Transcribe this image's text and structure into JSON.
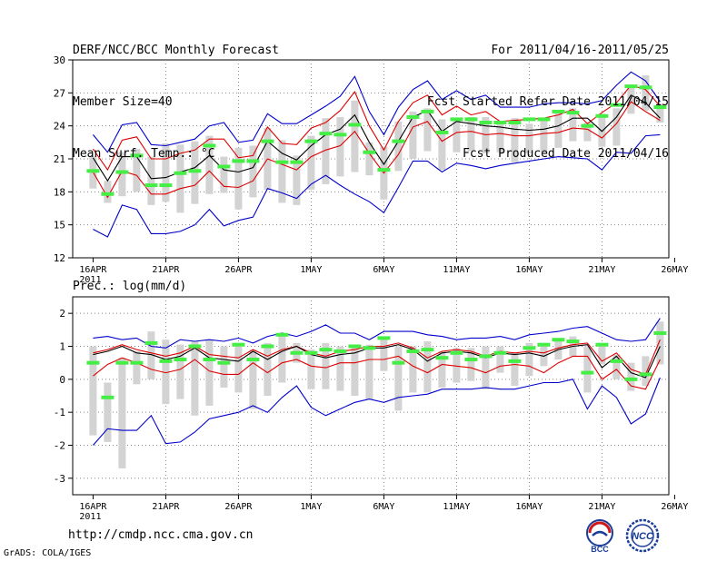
{
  "header": {
    "title": "DERF/NCC/BCC Monthly Forecast",
    "member_size": "Member Size=40",
    "variable": "Mean Surf. Temp.: °C",
    "forecast_period": "For 2011/04/16-2011/05/25",
    "start_date": "Fcst Started Refer Date 2011/04/15",
    "produced_date": "Fcst Produced Date 2011/04/16"
  },
  "footer": {
    "url": "http://cmdp.ncc.cma.gov.cn",
    "grads": "GrADS: COLA/IGES",
    "logo_bcc": "BCC",
    "logo_ncc": "NCC"
  },
  "colors": {
    "max_min": "#0000cc",
    "spread": "#dd0000",
    "mean": "#000000",
    "member": "#44ee44",
    "bar": "#d3d3d3",
    "grid": "#888888"
  },
  "chart_data": [
    {
      "type": "line",
      "title": "Mean Surf. Temp.: °C",
      "x_ticks": [
        "16APR",
        "21APR",
        "26APR",
        "1MAY",
        "6MAY",
        "11MAY",
        "16MAY",
        "21MAY",
        "26MAY"
      ],
      "x_tick_days": [
        0,
        5,
        10,
        15,
        20,
        25,
        30,
        35,
        40
      ],
      "x_sublabel": "2011",
      "ylim": [
        12,
        30
      ],
      "y_ticks": [
        12,
        15,
        18,
        21,
        24,
        27,
        30
      ],
      "days": [
        0,
        1,
        2,
        3,
        4,
        5,
        6,
        7,
        8,
        9,
        10,
        11,
        12,
        13,
        14,
        15,
        16,
        17,
        18,
        19,
        20,
        21,
        22,
        23,
        24,
        25,
        26,
        27,
        28,
        29,
        30,
        31,
        32,
        33,
        34,
        35,
        36,
        37,
        38,
        39
      ],
      "series": [
        {
          "name": "max",
          "values": [
            23.2,
            21.6,
            24.1,
            24.3,
            22.3,
            22.2,
            22.5,
            22.8,
            24.0,
            24.3,
            22.5,
            22.7,
            25.1,
            24.2,
            24.2,
            25.0,
            25.8,
            26.7,
            28.5,
            25.3,
            23.2,
            25.7,
            27.3,
            28.1,
            26.4,
            27.2,
            26.4,
            26.8,
            25.7,
            25.7,
            25.7,
            26.0,
            26.1,
            26.1,
            26.0,
            26.3,
            27.7,
            28.9,
            28.1,
            26.2
          ]
        },
        {
          "name": "spread_upper",
          "values": [
            21.9,
            20.0,
            22.7,
            23.0,
            21.0,
            21.0,
            21.5,
            21.8,
            22.8,
            22.8,
            21.1,
            21.3,
            23.9,
            22.4,
            22.3,
            23.8,
            24.3,
            25.4,
            27.1,
            24.0,
            21.8,
            24.4,
            26.1,
            26.8,
            25.0,
            25.8,
            25.0,
            25.3,
            24.4,
            24.5,
            24.6,
            24.7,
            25.0,
            25.5,
            24.2,
            25.2,
            26.1,
            27.7,
            27.3,
            25.8
          ]
        },
        {
          "name": "mean",
          "values": [
            21.1,
            19.0,
            21.2,
            21.2,
            19.2,
            19.3,
            19.8,
            20.2,
            21.3,
            20.0,
            19.8,
            20.2,
            22.6,
            21.5,
            20.9,
            22.2,
            23.2,
            23.7,
            25.0,
            22.5,
            20.5,
            22.6,
            24.8,
            25.4,
            23.5,
            24.4,
            24.2,
            24.0,
            23.9,
            23.7,
            23.6,
            23.7,
            24.0,
            24.7,
            24.7,
            23.5,
            24.8,
            26.8,
            26.1,
            24.7
          ]
        },
        {
          "name": "spread_lower",
          "values": [
            19.8,
            17.5,
            19.9,
            19.5,
            17.8,
            17.8,
            18.3,
            18.6,
            19.9,
            18.5,
            18.4,
            19.0,
            21.0,
            20.5,
            20.0,
            21.2,
            21.8,
            22.2,
            23.5,
            21.5,
            19.7,
            21.4,
            23.9,
            24.4,
            22.6,
            23.4,
            23.5,
            23.2,
            23.3,
            23.1,
            23.1,
            23.3,
            23.4,
            23.8,
            23.7,
            22.9,
            24.2,
            26.2,
            25.3,
            24.5
          ]
        },
        {
          "name": "min",
          "values": [
            14.6,
            13.9,
            16.8,
            16.4,
            14.2,
            14.2,
            14.4,
            15.0,
            16.4,
            14.9,
            15.4,
            15.7,
            18.3,
            17.9,
            17.4,
            18.7,
            19.5,
            18.6,
            17.8,
            17.1,
            16.1,
            18.4,
            20.8,
            20.8,
            19.8,
            20.6,
            20.4,
            20.1,
            20.4,
            20.6,
            20.8,
            21.0,
            21.2,
            21.1,
            21.0,
            20.0,
            21.6,
            21.5,
            23.1,
            23.2
          ]
        },
        {
          "name": "member_ticks",
          "values": [
            19.9,
            17.8,
            19.8,
            21.3,
            18.6,
            18.6,
            19.7,
            19.9,
            22.2,
            20.3,
            20.8,
            20.8,
            22.6,
            20.7,
            20.7,
            22.6,
            23.3,
            23.2,
            24.1,
            21.6,
            20.0,
            22.6,
            24.8,
            25.3,
            23.4,
            24.6,
            24.6,
            24.3,
            24.3,
            24.3,
            24.6,
            24.6,
            25.3,
            25.2,
            24.0,
            24.9,
            25.9,
            27.6,
            27.5,
            25.7
          ]
        },
        {
          "name": "bar_top",
          "values": [
            21.2,
            19.0,
            21.6,
            21.9,
            21.2,
            22.4,
            22.3,
            22.6,
            23.1,
            21.2,
            22.0,
            22.2,
            23.8,
            22.7,
            21.3,
            23.1,
            24.7,
            24.8,
            26.3,
            22.5,
            22.1,
            24.4,
            25.3,
            25.6,
            24.6,
            24.7,
            24.8,
            24.8,
            24.3,
            24.7,
            24.2,
            24.6,
            25.2,
            25.6,
            24.3,
            25.1,
            25.6,
            27.6,
            28.6,
            26.0
          ]
        },
        {
          "name": "bar_bottom",
          "values": [
            18.3,
            17.0,
            17.6,
            18.0,
            16.8,
            17.1,
            16.1,
            16.9,
            17.8,
            17.9,
            16.4,
            17.5,
            18.2,
            17.0,
            16.8,
            18.2,
            18.7,
            19.4,
            19.8,
            19.5,
            17.3,
            19.9,
            21.0,
            21.7,
            20.0,
            21.6,
            21.7,
            21.5,
            21.6,
            20.7,
            21.5,
            21.6,
            22.0,
            22.6,
            22.6,
            22.1,
            22.2,
            25.1,
            25.4,
            24.3
          ]
        }
      ]
    },
    {
      "type": "line",
      "title": "Prec.: log(mm/d)",
      "x_ticks": [
        "16APR",
        "21APR",
        "26APR",
        "1MAY",
        "6MAY",
        "11MAY",
        "16MAY",
        "21MAY",
        "26MAY"
      ],
      "x_tick_days": [
        0,
        5,
        10,
        15,
        20,
        25,
        30,
        35,
        40
      ],
      "x_sublabel": "2011",
      "ylim": [
        -3.5,
        2.5
      ],
      "y_ticks": [
        -3,
        -2,
        -1,
        0,
        1,
        2
      ],
      "days": [
        0,
        1,
        2,
        3,
        4,
        5,
        6,
        7,
        8,
        9,
        10,
        11,
        12,
        13,
        14,
        15,
        16,
        17,
        18,
        19,
        20,
        21,
        22,
        23,
        24,
        25,
        26,
        27,
        28,
        29,
        30,
        31,
        32,
        33,
        34,
        35,
        36,
        37,
        38,
        39
      ],
      "series": [
        {
          "name": "max",
          "values": [
            1.25,
            1.3,
            1.2,
            1.25,
            1.0,
            0.95,
            1.2,
            1.15,
            1.2,
            1.15,
            1.25,
            1.1,
            1.3,
            1.4,
            1.3,
            1.45,
            1.65,
            1.4,
            1.4,
            1.2,
            1.45,
            1.45,
            1.45,
            1.35,
            1.3,
            1.2,
            1.25,
            1.25,
            1.3,
            1.2,
            1.35,
            1.4,
            1.45,
            1.55,
            1.6,
            1.4,
            1.2,
            1.15,
            1.2,
            1.85
          ]
        },
        {
          "name": "spread_upper",
          "values": [
            0.8,
            0.9,
            1.05,
            0.9,
            0.8,
            0.7,
            0.8,
            1.0,
            0.75,
            0.7,
            0.65,
            0.9,
            0.7,
            0.9,
            1.0,
            0.8,
            0.7,
            0.85,
            0.9,
            1.0,
            1.0,
            1.1,
            0.95,
            0.65,
            0.85,
            0.9,
            0.85,
            0.7,
            0.85,
            0.8,
            0.85,
            0.8,
            0.95,
            1.05,
            1.1,
            0.55,
            0.8,
            0.3,
            0.15,
            1.2
          ]
        },
        {
          "name": "mean",
          "values": [
            0.75,
            0.85,
            1.0,
            0.8,
            0.75,
            0.6,
            0.7,
            0.95,
            0.65,
            0.6,
            0.55,
            0.85,
            0.6,
            0.85,
            1.0,
            0.75,
            0.65,
            0.75,
            0.8,
            0.95,
            0.95,
            1.05,
            0.9,
            0.55,
            0.8,
            0.85,
            0.8,
            0.65,
            0.8,
            0.75,
            0.8,
            0.7,
            0.9,
            1.0,
            1.05,
            0.35,
            0.7,
            0.2,
            0.05,
            1.0
          ]
        },
        {
          "name": "spread_lower",
          "values": [
            0.1,
            0.45,
            0.65,
            0.5,
            0.3,
            0.2,
            0.3,
            0.6,
            0.25,
            0.15,
            0.15,
            0.5,
            0.2,
            0.5,
            0.6,
            0.4,
            0.35,
            0.5,
            0.5,
            0.6,
            0.6,
            0.7,
            0.4,
            0.2,
            0.45,
            0.4,
            0.35,
            0.2,
            0.4,
            0.45,
            0.4,
            0.2,
            0.5,
            0.7,
            0.7,
            0.0,
            0.3,
            -0.2,
            -0.3,
            0.6
          ]
        },
        {
          "name": "min",
          "values": [
            -2.0,
            -1.5,
            -1.55,
            -1.55,
            -1.1,
            -1.95,
            -1.9,
            -1.6,
            -1.2,
            -1.1,
            -1.0,
            -0.8,
            -1.0,
            -0.55,
            -0.2,
            -0.85,
            -1.1,
            -0.9,
            -0.7,
            -0.6,
            -0.7,
            -0.55,
            -0.5,
            -0.45,
            -0.3,
            -0.3,
            -0.3,
            -0.25,
            -0.3,
            -0.3,
            -0.2,
            -0.1,
            -0.1,
            0.0,
            -0.9,
            -0.2,
            -0.55,
            -1.35,
            -1.05,
            0.05
          ]
        },
        {
          "name": "member_ticks",
          "values": [
            0.5,
            -0.55,
            0.5,
            0.5,
            1.1,
            0.55,
            0.6,
            1.0,
            0.6,
            0.5,
            1.05,
            0.6,
            1.0,
            1.35,
            0.8,
            0.8,
            0.9,
            0.85,
            1.0,
            0.95,
            1.25,
            0.5,
            0.85,
            0.9,
            0.65,
            0.8,
            0.6,
            0.7,
            0.8,
            0.55,
            0.95,
            1.05,
            1.2,
            1.15,
            0.2,
            1.05,
            0.55,
            0.0,
            0.15,
            1.4
          ]
        },
        {
          "name": "bar_top",
          "values": [
            1.0,
            -0.1,
            0.65,
            0.85,
            1.45,
            1.2,
            1.05,
            1.15,
            1.2,
            1.0,
            1.1,
            0.9,
            1.1,
            1.3,
            1.1,
            0.9,
            1.1,
            1.0,
            1.0,
            1.05,
            1.2,
            1.0,
            1.0,
            1.15,
            0.85,
            0.95,
            0.95,
            1.0,
            1.0,
            0.8,
            1.1,
            1.1,
            1.25,
            1.3,
            1.0,
            1.05,
            0.75,
            0.5,
            0.7,
            1.75
          ]
        },
        {
          "name": "bar_bottom",
          "values": [
            -1.7,
            -1.9,
            -2.7,
            -0.15,
            0.0,
            -0.75,
            -0.6,
            -1.1,
            -0.8,
            -0.25,
            -0.4,
            -0.9,
            -0.5,
            -0.1,
            0.5,
            -0.3,
            -0.3,
            -0.35,
            -0.5,
            -0.6,
            0.25,
            -0.95,
            -0.4,
            -0.4,
            -0.25,
            -0.1,
            -0.05,
            -0.3,
            0.2,
            -0.2,
            0.1,
            0.4,
            0.6,
            0.7,
            -0.4,
            0.45,
            0.0,
            -0.35,
            -0.2,
            0.45
          ]
        }
      ]
    }
  ]
}
